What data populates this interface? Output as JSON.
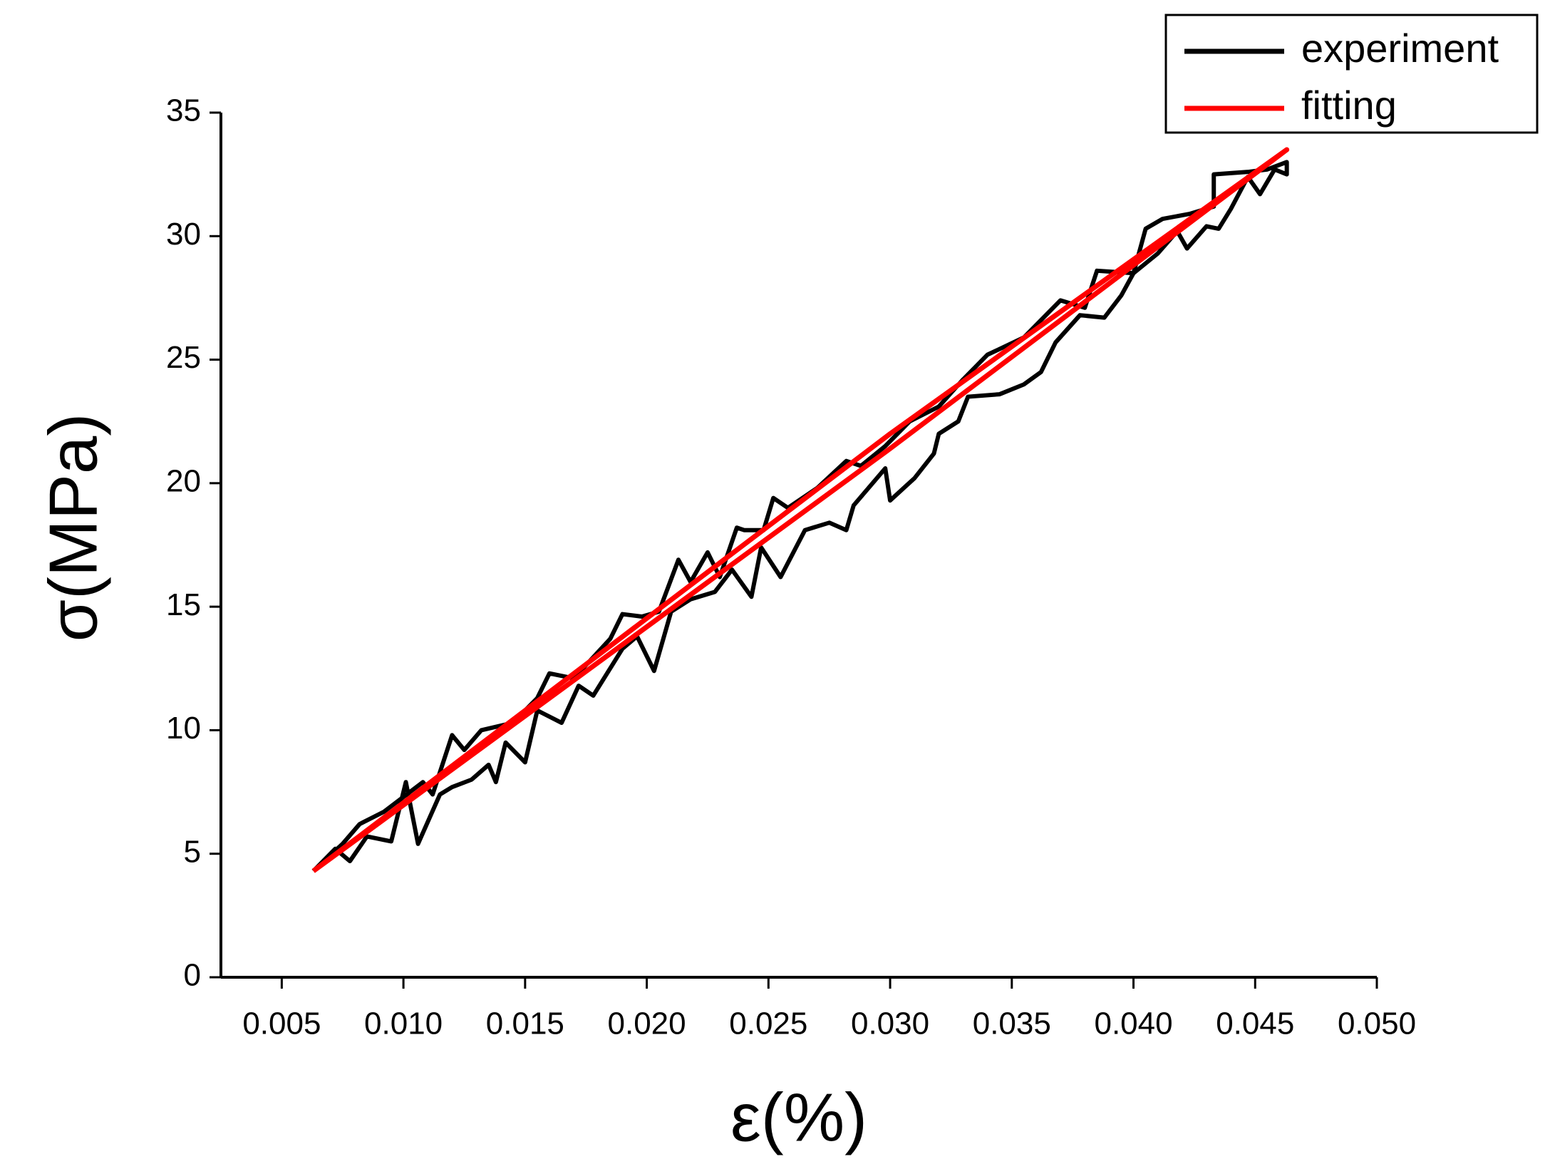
{
  "chart_data": {
    "type": "line",
    "xlabel": "ε(%)",
    "ylabel": "σ(MPa)",
    "xlim": [
      0.0025,
      0.05
    ],
    "xticks": [
      0.005,
      {
        "value": 0.01,
        "label": "0.010"
      },
      0.015,
      {
        "value": 0.02,
        "label": "0.020"
      },
      0.025,
      {
        "value": 0.03,
        "label": "0.030"
      },
      0.035,
      {
        "value": 0.04,
        "label": "0.040"
      },
      0.045,
      {
        "value": 0.05,
        "label": "0.050"
      }
    ],
    "ylim": [
      0,
      35
    ],
    "yticks": [
      0,
      5,
      10,
      15,
      20,
      25,
      30,
      35
    ],
    "legend": "top-right",
    "series": [
      {
        "name": "experiment",
        "color": "#000000",
        "x": [
          0.0063,
          0.0072,
          0.0078,
          0.0085,
          0.0095,
          0.0101,
          0.0104,
          0.0106,
          0.0115,
          0.012,
          0.0128,
          0.0135,
          0.0138,
          0.0142,
          0.015,
          0.0155,
          0.0165,
          0.0172,
          0.0178,
          0.019,
          0.0196,
          0.0203,
          0.021,
          0.0218,
          0.0228,
          0.0235,
          0.0243,
          0.0247,
          0.0255,
          0.0265,
          0.0275,
          0.0282,
          0.0285,
          0.0298,
          0.03,
          0.031,
          0.0318,
          0.032,
          0.0328,
          0.0332,
          0.0345,
          0.0355,
          0.0362,
          0.0368,
          0.0378,
          0.0388,
          0.0395,
          0.04,
          0.041,
          0.0418,
          0.0422,
          0.043,
          0.0435,
          0.044,
          0.0447,
          0.0452,
          0.0458,
          0.0463,
          0.0463,
          0.0455,
          0.0447,
          0.0433,
          0.0433,
          0.0423,
          0.0412,
          0.0405,
          0.04,
          0.0385,
          0.038,
          0.037,
          0.0355,
          0.034,
          0.033,
          0.032,
          0.0308,
          0.0298,
          0.0288,
          0.0282,
          0.027,
          0.0258,
          0.0252,
          0.0248,
          0.024,
          0.0237,
          0.023,
          0.0225,
          0.0218,
          0.0213,
          0.0205,
          0.0198,
          0.019,
          0.0185,
          0.017,
          0.016,
          0.0155,
          0.0145,
          0.0132,
          0.0125,
          0.012,
          0.0112,
          0.0108,
          0.0092,
          0.0082,
          0.0075,
          0.0063
        ],
        "values": [
          4.3,
          5.2,
          4.7,
          5.7,
          5.5,
          7.9,
          6.4,
          5.4,
          7.4,
          7.7,
          8.0,
          8.6,
          7.9,
          9.5,
          8.7,
          10.8,
          10.3,
          11.8,
          11.4,
          13.3,
          13.8,
          12.4,
          14.8,
          15.3,
          15.6,
          16.5,
          15.4,
          17.4,
          16.2,
          18.1,
          18.4,
          18.1,
          19.1,
          20.6,
          19.3,
          20.2,
          21.2,
          22.0,
          22.5,
          23.5,
          23.6,
          24.0,
          24.5,
          25.7,
          26.8,
          26.7,
          27.6,
          28.5,
          29.3,
          30.2,
          29.5,
          30.4,
          30.3,
          31.1,
          32.4,
          31.7,
          32.7,
          32.5,
          33.0,
          32.7,
          32.6,
          32.5,
          31.2,
          30.9,
          30.7,
          30.3,
          28.5,
          28.6,
          27.1,
          27.4,
          25.9,
          25.2,
          24.2,
          23.1,
          22.5,
          21.5,
          20.7,
          20.9,
          19.8,
          19.0,
          19.4,
          18.1,
          18.1,
          18.2,
          16.2,
          17.2,
          16.0,
          16.9,
          14.8,
          14.6,
          14.7,
          13.7,
          12.1,
          12.3,
          11.3,
          10.3,
          10.0,
          9.2,
          9.8,
          7.4,
          7.9,
          6.7,
          6.2,
          5.4,
          4.3
        ]
      },
      {
        "name": "fitting",
        "color": "#ff0000",
        "x": [
          0.0063,
          0.03,
          0.0463,
          0.03,
          0.0063
        ],
        "values": [
          4.3,
          21.4,
          33.5,
          22.0,
          4.3
        ]
      }
    ]
  }
}
